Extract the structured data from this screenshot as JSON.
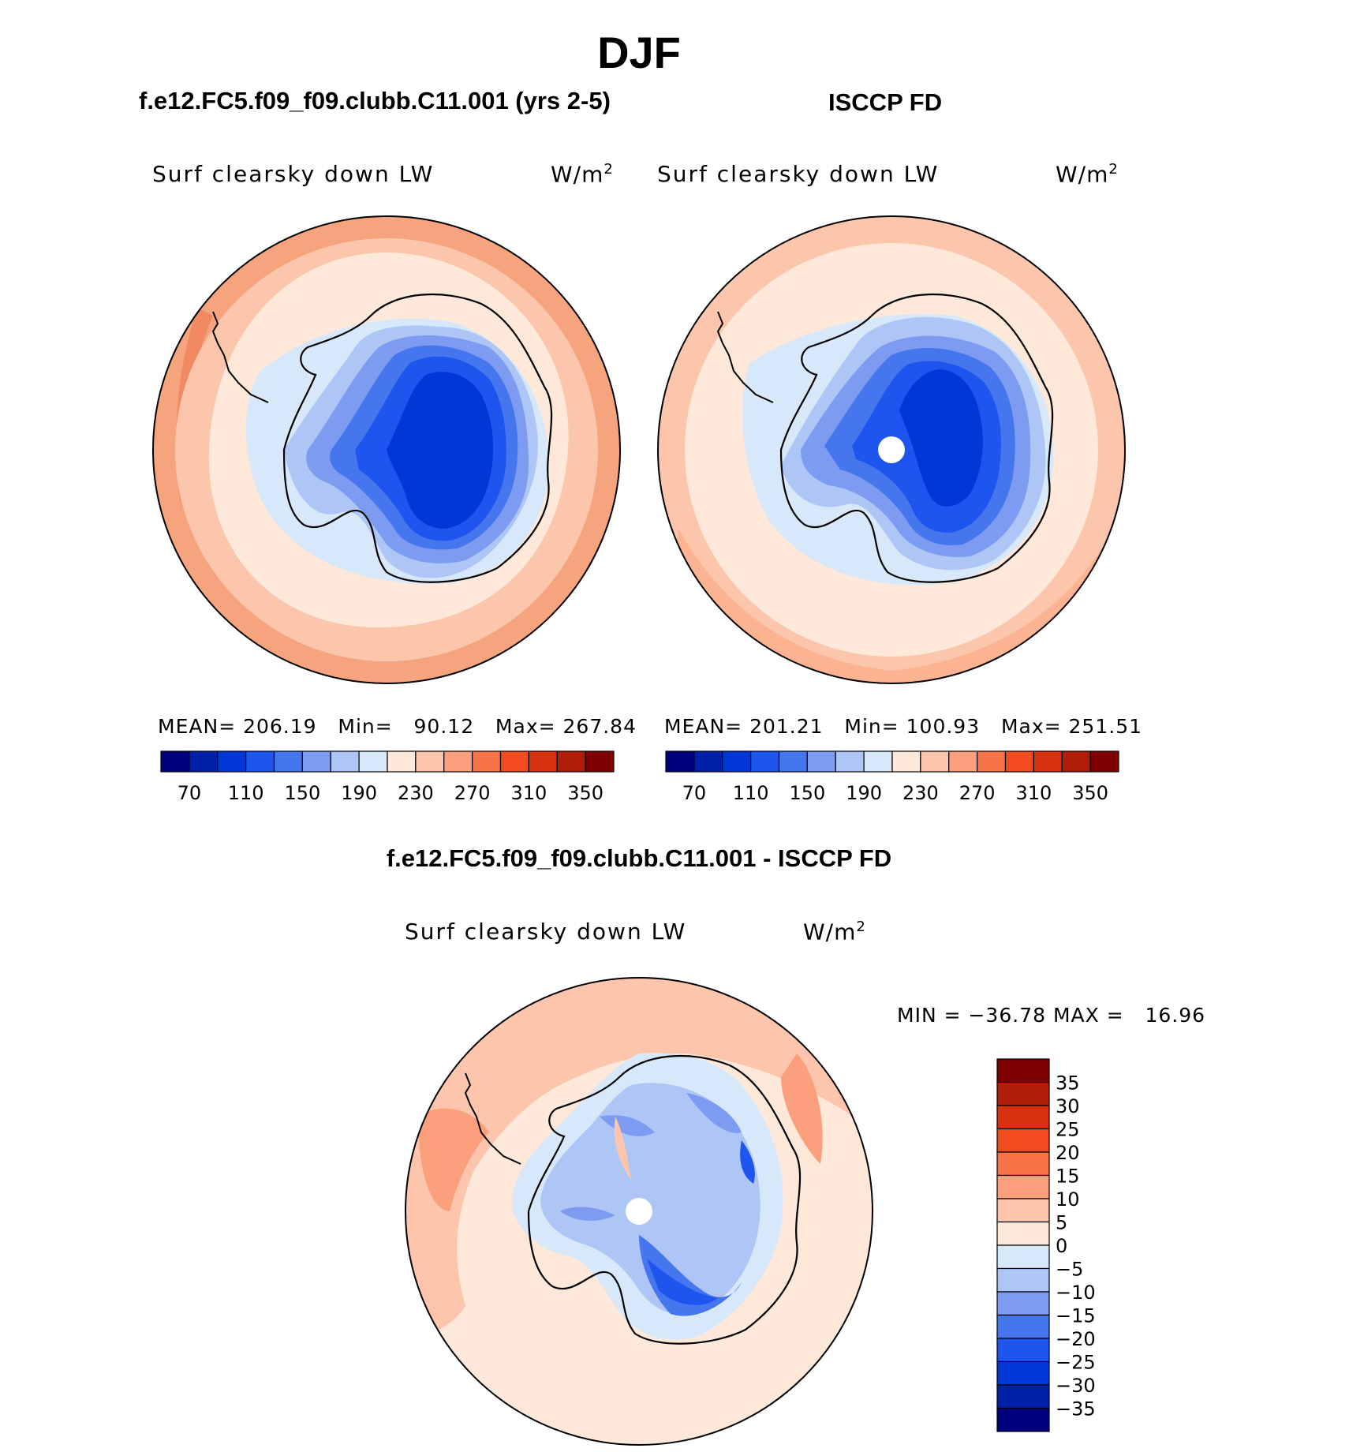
{
  "title": "DJF",
  "panels": [
    {
      "title": "f.e12.FC5.f09_f09.clubb.C11.001 (yrs 2-5)",
      "variable": "Surf clearsky down LW",
      "units": "W/m",
      "units_sup": "2",
      "stats": "MEAN= 206.19   Min=   90.12   Max= 267.84"
    },
    {
      "title": "ISCCP FD",
      "variable": "Surf clearsky down LW",
      "units": "W/m",
      "units_sup": "2",
      "stats": "MEAN= 201.21   Min= 100.93   Max= 251.51"
    }
  ],
  "difference": {
    "title": "f.e12.FC5.f09_f09.clubb.C11.001 - ISCCP FD",
    "variable": "Surf clearsky down LW",
    "units": "W/m",
    "units_sup": "2",
    "stats": "MIN = −36.78 MAX =   16.96"
  },
  "chart_data": [
    {
      "type": "heatmap",
      "projection": "south polar stereographic",
      "colorbar": {
        "orientation": "horizontal",
        "colors": [
          "#00007f",
          "#0020a8",
          "#0038d8",
          "#1e55ee",
          "#4676ee",
          "#7d9bf0",
          "#aec6f6",
          "#d8e8fb",
          "#fde8d9",
          "#fcc5ac",
          "#fb9f7d",
          "#f87348",
          "#f24b1e",
          "#d73110",
          "#b01e0a",
          "#7f0000"
        ],
        "tick_labels": [
          "70",
          "110",
          "150",
          "190",
          "230",
          "270",
          "310",
          "350"
        ]
      }
    },
    {
      "type": "heatmap",
      "projection": "south polar stereographic",
      "colorbar": {
        "orientation": "horizontal",
        "colors": [
          "#00007f",
          "#0020a8",
          "#0038d8",
          "#1e55ee",
          "#4676ee",
          "#7d9bf0",
          "#aec6f6",
          "#d8e8fb",
          "#fde8d9",
          "#fcc5ac",
          "#fb9f7d",
          "#f87348",
          "#f24b1e",
          "#d73110",
          "#b01e0a",
          "#7f0000"
        ],
        "tick_labels": [
          "70",
          "110",
          "150",
          "190",
          "230",
          "270",
          "310",
          "350"
        ]
      }
    },
    {
      "type": "heatmap",
      "projection": "south polar stereographic",
      "colorbar": {
        "orientation": "vertical",
        "colors_top_to_bottom": [
          "#7f0000",
          "#b01e0a",
          "#d73110",
          "#f24b1e",
          "#f87348",
          "#fb9f7d",
          "#fcc5ac",
          "#fde8d9",
          "#d8e8fb",
          "#aec6f6",
          "#7d9bf0",
          "#4676ee",
          "#1e55ee",
          "#0038d8",
          "#0020a8",
          "#00007f"
        ],
        "tick_labels": [
          "35",
          "30",
          "25",
          "20",
          "15",
          "10",
          "5",
          "0",
          "−5",
          "−10",
          "−15",
          "−20",
          "−25",
          "−30",
          "−35"
        ]
      }
    }
  ]
}
